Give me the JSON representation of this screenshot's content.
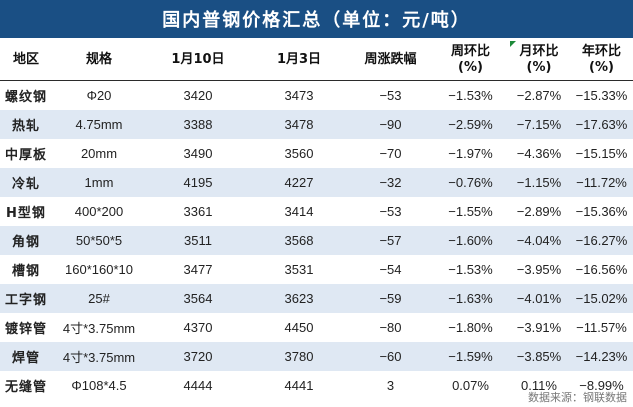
{
  "title": "国内普钢价格汇总（单位：元/吨）",
  "headers": {
    "region": "地区",
    "spec": "规格",
    "date1": "1月10日",
    "date2": "1月3日",
    "weekly_change": "周涨跌幅",
    "wow_line1": "周环比",
    "wow_line2": "(%)",
    "mom_line1": "月环比",
    "mom_line2": "(%)",
    "yoy_line1": "年环比",
    "yoy_line2": "(%)"
  },
  "rows": [
    {
      "region": "螺纹钢",
      "spec": "Φ20",
      "p1": "3420",
      "p2": "3473",
      "chg": "−53",
      "wow": "−1.53%",
      "mom": "−2.87%",
      "yoy": "−15.33%"
    },
    {
      "region": "热轧",
      "spec": "4.75mm",
      "p1": "3388",
      "p2": "3478",
      "chg": "−90",
      "wow": "−2.59%",
      "mom": "−7.15%",
      "yoy": "−17.63%"
    },
    {
      "region": "中厚板",
      "spec": "20mm",
      "p1": "3490",
      "p2": "3560",
      "chg": "−70",
      "wow": "−1.97%",
      "mom": "−4.36%",
      "yoy": "−15.15%"
    },
    {
      "region": "冷轧",
      "spec": "1mm",
      "p1": "4195",
      "p2": "4227",
      "chg": "−32",
      "wow": "−0.76%",
      "mom": "−1.15%",
      "yoy": "−11.72%"
    },
    {
      "region": "H型钢",
      "spec": "400*200",
      "p1": "3361",
      "p2": "3414",
      "chg": "−53",
      "wow": "−1.55%",
      "mom": "−2.89%",
      "yoy": "−15.36%"
    },
    {
      "region": "角钢",
      "spec": "50*50*5",
      "p1": "3511",
      "p2": "3568",
      "chg": "−57",
      "wow": "−1.60%",
      "mom": "−4.04%",
      "yoy": "−16.27%"
    },
    {
      "region": "槽钢",
      "spec": "160*160*10",
      "p1": "3477",
      "p2": "3531",
      "chg": "−54",
      "wow": "−1.53%",
      "mom": "−3.95%",
      "yoy": "−16.56%"
    },
    {
      "region": "工字钢",
      "spec": "25#",
      "p1": "3564",
      "p2": "3623",
      "chg": "−59",
      "wow": "−1.63%",
      "mom": "−4.01%",
      "yoy": "−15.02%"
    },
    {
      "region": "镀锌管",
      "spec": "4寸*3.75mm",
      "p1": "4370",
      "p2": "4450",
      "chg": "−80",
      "wow": "−1.80%",
      "mom": "−3.91%",
      "yoy": "−11.57%"
    },
    {
      "region": "焊管",
      "spec": "4寸*3.75mm",
      "p1": "3720",
      "p2": "3780",
      "chg": "−60",
      "wow": "−1.59%",
      "mom": "−3.85%",
      "yoy": "−14.23%"
    },
    {
      "region": "无缝管",
      "spec": "Φ108*4.5",
      "p1": "4444",
      "p2": "4441",
      "chg": "3",
      "wow": "0.07%",
      "mom": "0.11%",
      "yoy": "−8.99%"
    }
  ],
  "source": "数据来源：钢联数据",
  "colors": {
    "header_bg": "#1a4f84",
    "row_stripe": "#dfe8f3",
    "negative": "#1f8c2e",
    "positive": "#d21a1a"
  }
}
